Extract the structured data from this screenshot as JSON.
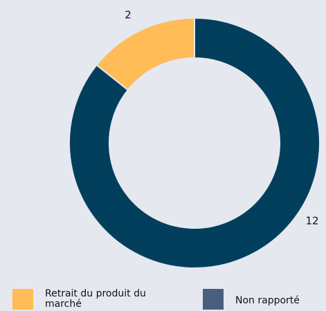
{
  "chart_data": {
    "type": "donut",
    "categories": [
      "Retrait du produit du marché",
      "Non rapporté"
    ],
    "values": [
      2,
      12
    ],
    "colors": [
      "#ffbc57",
      "#023f5c"
    ],
    "legend_colors": [
      "#ffbc57",
      "#4a5f7e"
    ]
  }
}
